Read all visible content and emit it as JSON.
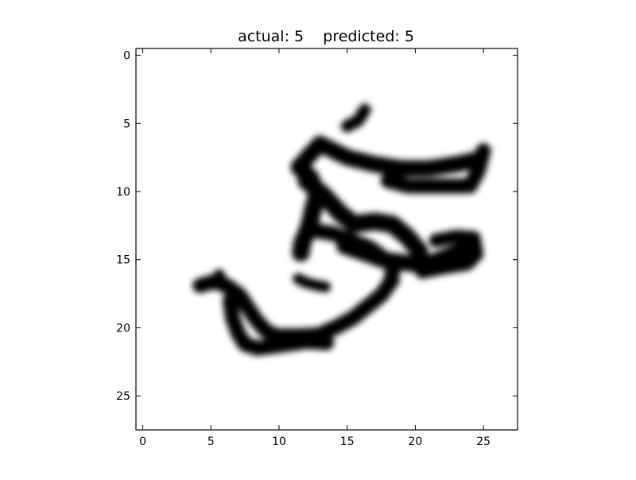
{
  "chart_data": {
    "type": "heatmap",
    "title": "actual: 5    predicted: 5",
    "xlabel": "",
    "ylabel": "",
    "x_ticks": [
      "0",
      "5",
      "10",
      "15",
      "20",
      "25"
    ],
    "y_ticks": [
      "0",
      "5",
      "10",
      "15",
      "20",
      "25"
    ],
    "xlim": [
      -0.5,
      27.5
    ],
    "ylim": [
      27.5,
      -0.5
    ],
    "y_axis_direction": "down",
    "colormap": "gray_r",
    "interpolation": "smooth",
    "grid": false,
    "legend": "none",
    "background_color": "#ffffff",
    "ink_color": "#000000",
    "grid_size": [
      28,
      28
    ],
    "strokes": [
      {
        "points": [
          [
            16.3,
            4.0
          ],
          [
            15.8,
            4.8
          ],
          [
            15.0,
            5.2
          ]
        ],
        "width": 0.9
      },
      {
        "points": [
          [
            11.8,
            7.8
          ],
          [
            13.0,
            6.5
          ],
          [
            15.0,
            7.5
          ],
          [
            17.0,
            8.0
          ],
          [
            19.0,
            8.3
          ],
          [
            21.0,
            8.3
          ],
          [
            23.0,
            8.0
          ],
          [
            24.8,
            7.6
          ]
        ],
        "width": 1.2
      },
      {
        "points": [
          [
            25.0,
            7.0
          ],
          [
            24.6,
            8.5
          ],
          [
            24.0,
            9.6
          ],
          [
            22.0,
            9.6
          ],
          [
            19.5,
            9.6
          ],
          [
            18.0,
            9.2
          ]
        ],
        "width": 1.1
      },
      {
        "points": [
          [
            11.5,
            8.2
          ],
          [
            12.3,
            9.0
          ],
          [
            12.8,
            10.2
          ],
          [
            12.5,
            11.3
          ],
          [
            12.2,
            12.6
          ],
          [
            11.7,
            13.8
          ],
          [
            11.6,
            14.5
          ]
        ],
        "width": 1.3
      },
      {
        "points": [
          [
            12.0,
            9.2
          ],
          [
            13.3,
            10.3
          ],
          [
            14.5,
            11.6
          ],
          [
            15.5,
            12.4
          ],
          [
            17.0,
            12.2
          ],
          [
            18.3,
            12.4
          ],
          [
            19.4,
            13.3
          ],
          [
            20.3,
            14.4
          ]
        ],
        "width": 1.3
      },
      {
        "points": [
          [
            14.8,
            14.0
          ],
          [
            16.2,
            14.5
          ],
          [
            17.6,
            15.0
          ],
          [
            19.0,
            15.2
          ],
          [
            20.6,
            15.4
          ],
          [
            22.0,
            14.9
          ],
          [
            23.2,
            14.4
          ],
          [
            24.0,
            13.8
          ]
        ],
        "width": 1.2
      },
      {
        "points": [
          [
            21.5,
            13.6
          ],
          [
            23.0,
            13.3
          ],
          [
            24.3,
            13.4
          ],
          [
            24.5,
            14.6
          ],
          [
            23.8,
            15.3
          ],
          [
            22.0,
            15.6
          ],
          [
            20.5,
            15.9
          ]
        ],
        "width": 1.0
      },
      {
        "points": [
          [
            12.3,
            12.8
          ],
          [
            14.0,
            13.1
          ],
          [
            15.3,
            13.6
          ],
          [
            16.6,
            14.1
          ],
          [
            17.7,
            14.9
          ],
          [
            18.4,
            15.6
          ],
          [
            18.2,
            16.5
          ]
        ],
        "width": 1.1
      },
      {
        "points": [
          [
            11.4,
            16.4
          ],
          [
            12.0,
            16.7
          ],
          [
            12.8,
            16.9
          ],
          [
            13.4,
            17.0
          ]
        ],
        "width": 0.8
      },
      {
        "points": [
          [
            18.3,
            16.5
          ],
          [
            17.5,
            17.6
          ],
          [
            16.4,
            18.5
          ],
          [
            15.4,
            19.3
          ],
          [
            14.3,
            19.9
          ],
          [
            13.0,
            20.5
          ],
          [
            11.6,
            20.6
          ],
          [
            10.0,
            20.6
          ]
        ],
        "width": 1.1
      },
      {
        "points": [
          [
            4.2,
            16.9
          ],
          [
            5.3,
            16.6
          ],
          [
            6.3,
            17.0
          ],
          [
            7.1,
            17.6
          ],
          [
            7.7,
            18.5
          ],
          [
            8.3,
            19.4
          ],
          [
            9.0,
            20.2
          ],
          [
            10.0,
            20.7
          ]
        ],
        "width": 1.1
      },
      {
        "points": [
          [
            5.6,
            16.1
          ],
          [
            6.0,
            16.8
          ],
          [
            6.6,
            17.5
          ]
        ],
        "width": 0.8
      },
      {
        "points": [
          [
            6.4,
            18.0
          ],
          [
            6.6,
            19.3
          ],
          [
            7.0,
            20.4
          ],
          [
            7.5,
            21.2
          ],
          [
            8.4,
            21.5
          ],
          [
            10.0,
            21.3
          ],
          [
            12.0,
            21.0
          ],
          [
            13.5,
            21.1
          ]
        ],
        "width": 1.1
      }
    ]
  }
}
